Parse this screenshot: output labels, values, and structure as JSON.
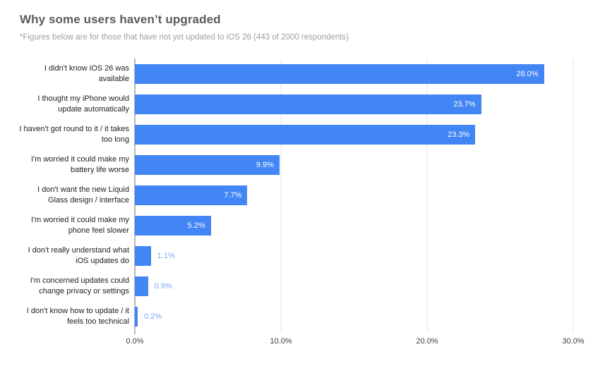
{
  "header": {
    "title": "Why some users haven’t upgraded",
    "subtitle": "*Figures below are for those that have not yet updated to iOS 26 (443 of 2000 respondents)"
  },
  "chart_data": {
    "type": "bar",
    "orientation": "horizontal",
    "title": "Why some users haven’t upgraded",
    "subtitle": "*Figures below are for those that have not yet updated to iOS 26 (443 of 2000 respondents)",
    "categories": [
      "I didn't know iOS 26 was available",
      "I thought my iPhone would update automatically",
      "I haven't got round to it / it takes too long",
      "I'm worried it could make my battery life worse",
      "I don't want the new Liquid Glass design / interface",
      "I'm worried it could make my phone feel slower",
      "I don't really understand what iOS updates do",
      "I'm concerned updates could change privacy or settings",
      "I don't know how to update / it feels too technical"
    ],
    "values": [
      28.0,
      23.7,
      23.3,
      9.9,
      7.7,
      5.2,
      1.1,
      0.9,
      0.2
    ],
    "value_labels": [
      "28.0%",
      "23.7%",
      "23.3%",
      "9.9%",
      "7.7%",
      "5.2%",
      "1.1%",
      "0.9%",
      "0.2%"
    ],
    "x_ticks": [
      "0.0%",
      "10.0%",
      "20.0%",
      "30.0%"
    ],
    "xlim": [
      0,
      30
    ],
    "xlabel": "",
    "ylabel": "",
    "grid": true,
    "legend": "none",
    "colors": {
      "bar": "#4285f4",
      "value_label_inside": "#ffffff",
      "value_label_outside": "#7baaf7",
      "gridline": "#e3e3e3",
      "axis_line": "#6f6f6f",
      "title": "#5a5a5a",
      "subtitle": "#9e9e9e",
      "tick_label": "#3c4043",
      "category_label": "#202124"
    }
  }
}
